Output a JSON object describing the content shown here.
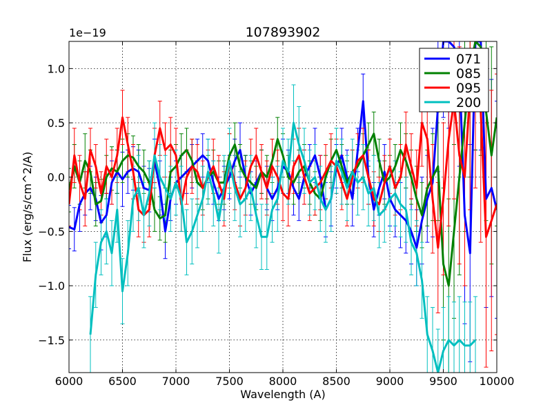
{
  "chart_data": {
    "type": "line",
    "title": "107893902",
    "xlabel": "Wavelength (A)",
    "ylabel": "Flux (erg/s/cm^2/A)",
    "y_scale_label": "1e−19",
    "xlim": [
      6000,
      10000
    ],
    "ylim": [
      -1.8,
      1.25
    ],
    "x_ticks": [
      6000,
      6500,
      7000,
      7500,
      8000,
      8500,
      9000,
      9500,
      10000
    ],
    "x_tick_labels": [
      "6000",
      "6500",
      "7000",
      "7500",
      "8000",
      "8500",
      "9000",
      "9500",
      "10000"
    ],
    "y_ticks": [
      -1.5,
      -1.0,
      -0.5,
      0.0,
      0.5,
      1.0
    ],
    "y_tick_labels": [
      "−1.5",
      "−1.0",
      "−0.5",
      "0.0",
      "0.5",
      "1.0"
    ],
    "grid": true,
    "legend_position": "top-right",
    "series": [
      {
        "name": "071",
        "color": "#0000ff",
        "x": [
          6000,
          6050,
          6100,
          6150,
          6200,
          6250,
          6300,
          6350,
          6400,
          6450,
          6500,
          6550,
          6600,
          6650,
          6700,
          6750,
          6800,
          6850,
          6900,
          6950,
          7000,
          7050,
          7100,
          7150,
          7200,
          7250,
          7300,
          7350,
          7400,
          7450,
          7500,
          7550,
          7600,
          7650,
          7700,
          7750,
          7800,
          7850,
          7900,
          7950,
          8000,
          8050,
          8100,
          8150,
          8200,
          8250,
          8300,
          8350,
          8400,
          8450,
          8500,
          8550,
          8600,
          8650,
          8700,
          8750,
          8800,
          8850,
          8900,
          8950,
          9000,
          9050,
          9100,
          9150,
          9200,
          9250,
          9300,
          9350,
          9400,
          9450,
          9500,
          9550,
          9600,
          9650,
          9700,
          9750,
          9800,
          9850,
          9900,
          9950,
          10000
        ],
        "y": [
          -0.46,
          -0.48,
          -0.25,
          -0.15,
          -0.1,
          -0.2,
          -0.42,
          -0.35,
          -0.05,
          0.05,
          -0.02,
          0.05,
          0.08,
          0.05,
          -0.1,
          -0.12,
          0.15,
          -0.1,
          -0.5,
          -0.2,
          -0.05,
          0.0,
          0.05,
          0.1,
          0.15,
          0.2,
          0.15,
          -0.05,
          -0.2,
          -0.1,
          0.0,
          0.15,
          0.25,
          0.0,
          -0.15,
          -0.05,
          0.05,
          -0.1,
          -0.2,
          -0.1,
          0.1,
          0.05,
          -0.1,
          -0.2,
          0.0,
          0.1,
          0.2,
          0.0,
          -0.3,
          -0.2,
          0.1,
          0.2,
          0.0,
          -0.2,
          0.25,
          0.7,
          0.0,
          -0.3,
          -0.1,
          0.05,
          -0.2,
          -0.3,
          -0.35,
          -0.4,
          -0.5,
          -0.65,
          -0.4,
          -0.2,
          -0.05,
          0.65,
          1.25,
          1.25,
          1.2,
          1.0,
          -0.35,
          -0.7,
          1.25,
          1.25,
          -0.2,
          -0.1,
          -0.3
        ],
        "err": [
          0.2,
          0.2,
          0.25,
          0.2,
          0.2,
          0.2,
          0.25,
          0.2,
          0.2,
          0.2,
          0.25,
          0.2,
          0.2,
          0.2,
          0.2,
          0.2,
          0.2,
          0.25,
          0.25,
          0.2,
          0.2,
          0.2,
          0.2,
          0.2,
          0.2,
          0.2,
          0.2,
          0.2,
          0.2,
          0.2,
          0.2,
          0.2,
          0.25,
          0.2,
          0.2,
          0.2,
          0.2,
          0.2,
          0.2,
          0.2,
          0.25,
          0.2,
          0.25,
          0.2,
          0.25,
          0.2,
          0.25,
          0.2,
          0.25,
          0.25,
          0.2,
          0.25,
          0.25,
          0.25,
          0.2,
          0.25,
          0.25,
          0.25,
          0.25,
          0.25,
          0.25,
          0.25,
          0.3,
          0.3,
          0.3,
          0.35,
          0.4,
          0.4,
          0.5,
          0.6,
          0.7,
          0.8,
          0.9,
          0.9,
          1.0,
          1.0,
          1.0,
          1.0,
          1.0,
          1.0,
          1.0
        ]
      },
      {
        "name": "085",
        "color": "#008000",
        "x": [
          6000,
          6050,
          6100,
          6150,
          6200,
          6250,
          6300,
          6350,
          6400,
          6450,
          6500,
          6550,
          6600,
          6650,
          6700,
          6750,
          6800,
          6850,
          6900,
          6950,
          7000,
          7050,
          7100,
          7150,
          7200,
          7250,
          7300,
          7350,
          7400,
          7450,
          7500,
          7550,
          7600,
          7650,
          7700,
          7750,
          7800,
          7850,
          7900,
          7950,
          8000,
          8050,
          8100,
          8150,
          8200,
          8250,
          8300,
          8350,
          8400,
          8450,
          8500,
          8550,
          8600,
          8650,
          8700,
          8750,
          8800,
          8850,
          8900,
          8950,
          9000,
          9050,
          9100,
          9150,
          9200,
          9250,
          9300,
          9350,
          9400,
          9450,
          9500,
          9550,
          9600,
          9650,
          9700,
          9750,
          9800,
          9850,
          9900,
          9950,
          10000
        ],
        "y": [
          -0.12,
          0.1,
          -0.05,
          0.15,
          0.05,
          -0.25,
          -0.22,
          0.0,
          0.08,
          0.05,
          0.15,
          0.2,
          0.18,
          0.1,
          0.05,
          -0.05,
          -0.3,
          -0.38,
          -0.35,
          0.05,
          0.1,
          0.2,
          0.25,
          0.15,
          -0.05,
          -0.1,
          0.0,
          0.05,
          -0.05,
          -0.05,
          0.2,
          0.3,
          0.1,
          0.0,
          -0.05,
          -0.1,
          0.05,
          0.0,
          0.15,
          0.35,
          0.2,
          0.0,
          -0.05,
          0.05,
          0.1,
          -0.05,
          -0.15,
          -0.2,
          0.0,
          0.15,
          0.25,
          0.1,
          -0.05,
          0.05,
          0.1,
          0.2,
          0.3,
          0.4,
          0.15,
          -0.05,
          0.0,
          0.1,
          0.25,
          0.15,
          0.0,
          -0.2,
          -0.35,
          -0.1,
          0.0,
          0.1,
          -0.8,
          -1.0,
          -0.5,
          0.0,
          0.5,
          1.0,
          1.25,
          1.2,
          0.6,
          0.2,
          0.55
        ],
        "err": [
          0.2,
          0.2,
          0.2,
          0.25,
          0.2,
          0.2,
          0.2,
          0.2,
          0.2,
          0.2,
          0.2,
          0.2,
          0.2,
          0.2,
          0.2,
          0.2,
          0.2,
          0.2,
          0.25,
          0.2,
          0.2,
          0.2,
          0.2,
          0.2,
          0.2,
          0.2,
          0.2,
          0.2,
          0.2,
          0.2,
          0.2,
          0.2,
          0.2,
          0.2,
          0.2,
          0.2,
          0.2,
          0.2,
          0.2,
          0.2,
          0.2,
          0.2,
          0.2,
          0.2,
          0.2,
          0.2,
          0.2,
          0.2,
          0.2,
          0.2,
          0.2,
          0.2,
          0.2,
          0.2,
          0.2,
          0.2,
          0.2,
          0.2,
          0.2,
          0.2,
          0.2,
          0.2,
          0.25,
          0.25,
          0.25,
          0.3,
          0.3,
          0.35,
          0.4,
          0.5,
          0.7,
          0.8,
          0.8,
          0.9,
          1.0,
          1.0,
          1.0,
          1.0,
          1.0,
          1.0,
          1.0
        ]
      },
      {
        "name": "095",
        "color": "#ff0000",
        "x": [
          6000,
          6050,
          6100,
          6150,
          6200,
          6250,
          6300,
          6350,
          6400,
          6450,
          6500,
          6550,
          6600,
          6650,
          6700,
          6750,
          6800,
          6850,
          6900,
          6950,
          7000,
          7050,
          7100,
          7150,
          7200,
          7250,
          7300,
          7350,
          7400,
          7450,
          7500,
          7550,
          7600,
          7650,
          7700,
          7750,
          7800,
          7850,
          7900,
          7950,
          8000,
          8050,
          8100,
          8150,
          8200,
          8250,
          8300,
          8350,
          8400,
          8450,
          8500,
          8550,
          8600,
          8650,
          8700,
          8750,
          8800,
          8850,
          8900,
          8950,
          9000,
          9050,
          9100,
          9150,
          9200,
          9250,
          9300,
          9350,
          9400,
          9450,
          9500,
          9550,
          9600,
          9650,
          9700,
          9750,
          9800,
          9850,
          9900,
          9950,
          10000
        ],
        "y": [
          -0.25,
          0.2,
          -0.05,
          -0.2,
          0.25,
          0.1,
          -0.15,
          0.1,
          0.0,
          0.2,
          0.55,
          0.3,
          0.05,
          -0.3,
          -0.35,
          -0.3,
          0.2,
          0.45,
          0.25,
          0.3,
          0.2,
          -0.25,
          0.0,
          0.1,
          0.05,
          -0.1,
          0.0,
          0.1,
          -0.05,
          -0.2,
          0.15,
          -0.05,
          -0.2,
          -0.1,
          0.1,
          0.2,
          0.05,
          -0.1,
          0.1,
          0.0,
          -0.15,
          -0.2,
          0.1,
          0.2,
          0.0,
          -0.15,
          -0.1,
          -0.05,
          0.05,
          0.15,
          0.1,
          -0.05,
          -0.2,
          0.0,
          0.15,
          0.2,
          0.0,
          -0.2,
          -0.25,
          -0.05,
          0.1,
          -0.1,
          0.0,
          0.3,
          0.1,
          -0.1,
          0.5,
          0.35,
          -0.2,
          -0.65,
          -0.2,
          0.35,
          0.7,
          0.2,
          0.0,
          0.8,
          1.0,
          0.6,
          -0.55,
          -0.4,
          -0.25
        ],
        "err": [
          0.2,
          0.25,
          0.25,
          0.25,
          0.2,
          0.2,
          0.2,
          0.25,
          0.25,
          0.25,
          0.25,
          0.25,
          0.25,
          0.25,
          0.25,
          0.25,
          0.25,
          0.25,
          0.25,
          0.25,
          0.25,
          0.25,
          0.25,
          0.25,
          0.25,
          0.25,
          0.25,
          0.25,
          0.25,
          0.25,
          0.25,
          0.25,
          0.25,
          0.25,
          0.25,
          0.25,
          0.25,
          0.25,
          0.25,
          0.25,
          0.25,
          0.25,
          0.25,
          0.25,
          0.25,
          0.25,
          0.25,
          0.25,
          0.25,
          0.25,
          0.25,
          0.25,
          0.25,
          0.25,
          0.25,
          0.25,
          0.25,
          0.25,
          0.25,
          0.25,
          0.25,
          0.25,
          0.3,
          0.3,
          0.3,
          0.35,
          0.4,
          0.45,
          0.5,
          0.6,
          0.7,
          0.8,
          0.9,
          1.0,
          1.0,
          1.1,
          1.1,
          1.2,
          1.2,
          1.2,
          1.2
        ]
      },
      {
        "name": "200",
        "color": "#00bfbf",
        "x": [
          6200,
          6250,
          6300,
          6350,
          6400,
          6450,
          6500,
          6550,
          6600,
          6650,
          6700,
          6750,
          6800,
          6850,
          6900,
          6950,
          7000,
          7050,
          7100,
          7150,
          7200,
          7250,
          7300,
          7350,
          7400,
          7450,
          7500,
          7550,
          7600,
          7650,
          7700,
          7750,
          7800,
          7850,
          7900,
          7950,
          8000,
          8050,
          8100,
          8150,
          8200,
          8250,
          8300,
          8350,
          8400,
          8450,
          8500,
          8550,
          8600,
          8650,
          8700,
          8750,
          8800,
          8850,
          8900,
          8950,
          9000,
          9050,
          9100,
          9150,
          9200,
          9250,
          9300,
          9350,
          9400,
          9450,
          9500,
          9550,
          9600,
          9650,
          9700,
          9750,
          9800
        ],
        "y": [
          -1.45,
          -0.9,
          -0.6,
          -0.5,
          -0.7,
          -0.3,
          -1.05,
          -0.7,
          -0.2,
          -0.1,
          -0.35,
          -0.15,
          0.2,
          0.0,
          -0.1,
          -0.2,
          -0.05,
          -0.2,
          -0.6,
          -0.5,
          -0.35,
          -0.2,
          0.05,
          -0.15,
          -0.4,
          -0.1,
          0.15,
          -0.1,
          -0.25,
          -0.2,
          -0.1,
          -0.35,
          -0.55,
          -0.55,
          -0.3,
          -0.2,
          0.15,
          0.05,
          0.5,
          0.3,
          0.15,
          -0.05,
          0.0,
          -0.2,
          -0.3,
          -0.2,
          0.15,
          0.05,
          -0.1,
          0.05,
          -0.05,
          0.0,
          -0.15,
          -0.1,
          -0.35,
          -0.3,
          -0.2,
          -0.15,
          -0.25,
          -0.3,
          -0.6,
          -0.7,
          -0.95,
          -1.45,
          -1.6,
          -1.8,
          -1.6,
          -1.5,
          -1.55,
          -1.5,
          -1.55,
          -1.55,
          -1.5
        ],
        "err": [
          0.35,
          0.3,
          0.3,
          0.3,
          0.3,
          0.3,
          0.3,
          0.3,
          0.3,
          0.3,
          0.3,
          0.3,
          0.3,
          0.3,
          0.3,
          0.3,
          0.3,
          0.3,
          0.3,
          0.3,
          0.3,
          0.3,
          0.3,
          0.3,
          0.3,
          0.3,
          0.3,
          0.3,
          0.3,
          0.3,
          0.3,
          0.3,
          0.3,
          0.3,
          0.3,
          0.3,
          0.3,
          0.3,
          0.35,
          0.35,
          0.3,
          0.3,
          0.3,
          0.3,
          0.3,
          0.3,
          0.3,
          0.3,
          0.3,
          0.3,
          0.3,
          0.3,
          0.3,
          0.3,
          0.3,
          0.3,
          0.3,
          0.3,
          0.3,
          0.3,
          0.3,
          0.3,
          0.35,
          0.35,
          0.4,
          0.4,
          0.4,
          0.4,
          0.4,
          0.4,
          0.4,
          0.4,
          0.4
        ]
      }
    ]
  }
}
